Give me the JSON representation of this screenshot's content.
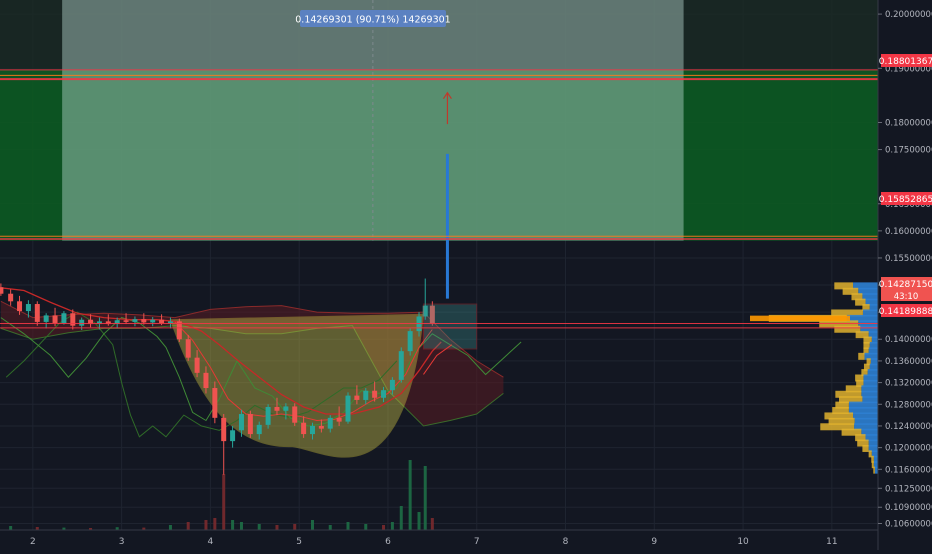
{
  "chart_data": {
    "type": "candlestick",
    "title": "",
    "xlabel": "",
    "ylabel": "",
    "x_ticks": [
      "2",
      "3",
      "4",
      "5",
      "6",
      "7",
      "8",
      "9",
      "10",
      "11"
    ],
    "x_tick_values": [
      2,
      3,
      4,
      5,
      6,
      7,
      8,
      9,
      10,
      11
    ],
    "xlim": [
      1.63,
      11.52
    ],
    "y_ticks": [
      "0.20000000",
      "0.19000000",
      "0.18000000",
      "0.17500000",
      "0.16500000",
      "0.16000000",
      "0.15500000",
      "0.15000000",
      "0.14500000",
      "0.14000000",
      "0.13600000",
      "0.13200000",
      "0.12800000",
      "0.12400000",
      "0.12000000",
      "0.11600000",
      "0.11250000",
      "0.10900000",
      "0.10600000"
    ],
    "ylim": [
      0.1048,
      0.2026
    ],
    "price_labels": {
      "target": "0.18801367",
      "entry": "0.15852865",
      "current": "0.14287150",
      "countdown": "43:10",
      "low": "0.14189888"
    },
    "measure_label": "0.14269301 (90.71%) 14269301",
    "patterns": {
      "cup_top": 0.1446,
      "cup_bottom": 0.1202,
      "cup_x": [
        3.55,
        6.4
      ],
      "projection_box": {
        "x": [
          6.4,
          7.0
        ],
        "y": [
          0.1382,
          0.1465
        ]
      },
      "target_zone": {
        "x": [
          2.33,
          9.33
        ],
        "y": [
          0.1582,
          0.203
        ]
      },
      "arrow": {
        "x": 6.67,
        "y": [
          0.1475,
          0.1742
        ]
      },
      "arrow_head": {
        "x": 6.67,
        "y": [
          0.1797,
          0.1855
        ]
      }
    },
    "candles": [
      {
        "x": 1.64,
        "o": 0.1496,
        "h": 0.1503,
        "l": 0.148,
        "c": 0.1484
      },
      {
        "x": 1.75,
        "o": 0.1484,
        "h": 0.1492,
        "l": 0.1462,
        "c": 0.147
      },
      {
        "x": 1.85,
        "o": 0.147,
        "h": 0.148,
        "l": 0.1445,
        "c": 0.1452
      },
      {
        "x": 1.95,
        "o": 0.1452,
        "h": 0.1472,
        "l": 0.144,
        "c": 0.1465
      },
      {
        "x": 2.05,
        "o": 0.1465,
        "h": 0.147,
        "l": 0.1425,
        "c": 0.1432
      },
      {
        "x": 2.15,
        "o": 0.1432,
        "h": 0.1448,
        "l": 0.142,
        "c": 0.1444
      },
      {
        "x": 2.25,
        "o": 0.1444,
        "h": 0.1458,
        "l": 0.1424,
        "c": 0.143
      },
      {
        "x": 2.35,
        "o": 0.143,
        "h": 0.1452,
        "l": 0.1427,
        "c": 0.1448
      },
      {
        "x": 2.45,
        "o": 0.1448,
        "h": 0.1455,
        "l": 0.1418,
        "c": 0.1425
      },
      {
        "x": 2.55,
        "o": 0.1425,
        "h": 0.144,
        "l": 0.1417,
        "c": 0.1436
      },
      {
        "x": 2.65,
        "o": 0.1436,
        "h": 0.1446,
        "l": 0.1422,
        "c": 0.1428
      },
      {
        "x": 2.75,
        "o": 0.1428,
        "h": 0.144,
        "l": 0.1418,
        "c": 0.1433
      },
      {
        "x": 2.85,
        "o": 0.1433,
        "h": 0.1446,
        "l": 0.1425,
        "c": 0.1428
      },
      {
        "x": 2.95,
        "o": 0.1428,
        "h": 0.144,
        "l": 0.142,
        "c": 0.1435
      },
      {
        "x": 3.05,
        "o": 0.1435,
        "h": 0.1448,
        "l": 0.1428,
        "c": 0.1432
      },
      {
        "x": 3.15,
        "o": 0.1432,
        "h": 0.1442,
        "l": 0.1424,
        "c": 0.1437
      },
      {
        "x": 3.25,
        "o": 0.1437,
        "h": 0.1448,
        "l": 0.1427,
        "c": 0.1431
      },
      {
        "x": 3.35,
        "o": 0.1431,
        "h": 0.1441,
        "l": 0.1424,
        "c": 0.1436
      },
      {
        "x": 3.45,
        "o": 0.1436,
        "h": 0.1446,
        "l": 0.1426,
        "c": 0.143
      },
      {
        "x": 3.55,
        "o": 0.143,
        "h": 0.144,
        "l": 0.142,
        "c": 0.1433
      },
      {
        "x": 3.65,
        "o": 0.1433,
        "h": 0.1438,
        "l": 0.1395,
        "c": 0.14
      },
      {
        "x": 3.75,
        "o": 0.14,
        "h": 0.1408,
        "l": 0.136,
        "c": 0.1366
      },
      {
        "x": 3.85,
        "o": 0.1366,
        "h": 0.138,
        "l": 0.133,
        "c": 0.1338
      },
      {
        "x": 3.95,
        "o": 0.1338,
        "h": 0.135,
        "l": 0.13,
        "c": 0.131
      },
      {
        "x": 4.05,
        "o": 0.131,
        "h": 0.1322,
        "l": 0.1245,
        "c": 0.1255
      },
      {
        "x": 4.15,
        "o": 0.1255,
        "h": 0.1262,
        "l": 0.115,
        "c": 0.1212
      },
      {
        "x": 4.25,
        "o": 0.1212,
        "h": 0.124,
        "l": 0.12,
        "c": 0.1232
      },
      {
        "x": 4.35,
        "o": 0.1232,
        "h": 0.127,
        "l": 0.122,
        "c": 0.1262
      },
      {
        "x": 4.45,
        "o": 0.1262,
        "h": 0.1268,
        "l": 0.1218,
        "c": 0.1225
      },
      {
        "x": 4.55,
        "o": 0.1225,
        "h": 0.1248,
        "l": 0.1215,
        "c": 0.1242
      },
      {
        "x": 4.65,
        "o": 0.1242,
        "h": 0.128,
        "l": 0.1235,
        "c": 0.1275
      },
      {
        "x": 4.75,
        "o": 0.1275,
        "h": 0.1292,
        "l": 0.126,
        "c": 0.1268
      },
      {
        "x": 4.85,
        "o": 0.1268,
        "h": 0.1282,
        "l": 0.1252,
        "c": 0.1276
      },
      {
        "x": 4.95,
        "o": 0.1276,
        "h": 0.1282,
        "l": 0.124,
        "c": 0.1246
      },
      {
        "x": 5.05,
        "o": 0.1246,
        "h": 0.1258,
        "l": 0.1218,
        "c": 0.1225
      },
      {
        "x": 5.15,
        "o": 0.1225,
        "h": 0.1246,
        "l": 0.1215,
        "c": 0.124
      },
      {
        "x": 5.25,
        "o": 0.124,
        "h": 0.1252,
        "l": 0.1228,
        "c": 0.1235
      },
      {
        "x": 5.35,
        "o": 0.1235,
        "h": 0.126,
        "l": 0.1228,
        "c": 0.1255
      },
      {
        "x": 5.45,
        "o": 0.1255,
        "h": 0.1276,
        "l": 0.124,
        "c": 0.1248
      },
      {
        "x": 5.55,
        "o": 0.1248,
        "h": 0.1302,
        "l": 0.1244,
        "c": 0.1296
      },
      {
        "x": 5.65,
        "o": 0.1296,
        "h": 0.1315,
        "l": 0.128,
        "c": 0.1288
      },
      {
        "x": 5.75,
        "o": 0.1288,
        "h": 0.131,
        "l": 0.128,
        "c": 0.1305
      },
      {
        "x": 5.85,
        "o": 0.1305,
        "h": 0.1322,
        "l": 0.1285,
        "c": 0.1292
      },
      {
        "x": 5.95,
        "o": 0.1292,
        "h": 0.1312,
        "l": 0.1284,
        "c": 0.1306
      },
      {
        "x": 6.05,
        "o": 0.1306,
        "h": 0.133,
        "l": 0.1298,
        "c": 0.1325
      },
      {
        "x": 6.15,
        "o": 0.1325,
        "h": 0.1385,
        "l": 0.132,
        "c": 0.1378
      },
      {
        "x": 6.25,
        "o": 0.1378,
        "h": 0.142,
        "l": 0.137,
        "c": 0.1415
      },
      {
        "x": 6.35,
        "o": 0.1415,
        "h": 0.145,
        "l": 0.1405,
        "c": 0.1442
      },
      {
        "x": 6.42,
        "o": 0.1442,
        "h": 0.1512,
        "l": 0.1436,
        "c": 0.1462
      },
      {
        "x": 6.5,
        "o": 0.1462,
        "h": 0.147,
        "l": 0.1425,
        "c": 0.1429
      }
    ],
    "volume": [
      {
        "x": 1.75,
        "v": 2,
        "up": true
      },
      {
        "x": 2.05,
        "v": 1.5,
        "up": false
      },
      {
        "x": 2.35,
        "v": 1.2,
        "up": true
      },
      {
        "x": 2.65,
        "v": 1,
        "up": false
      },
      {
        "x": 2.95,
        "v": 1.4,
        "up": true
      },
      {
        "x": 3.25,
        "v": 1.2,
        "up": false
      },
      {
        "x": 3.55,
        "v": 2.5,
        "up": true
      },
      {
        "x": 3.75,
        "v": 4,
        "up": false
      },
      {
        "x": 3.95,
        "v": 5,
        "up": false
      },
      {
        "x": 4.05,
        "v": 6,
        "up": false
      },
      {
        "x": 4.15,
        "v": 28,
        "up": false
      },
      {
        "x": 4.25,
        "v": 5,
        "up": true
      },
      {
        "x": 4.35,
        "v": 4,
        "up": true
      },
      {
        "x": 4.55,
        "v": 3,
        "up": true
      },
      {
        "x": 4.75,
        "v": 2.5,
        "up": false
      },
      {
        "x": 4.95,
        "v": 3,
        "up": false
      },
      {
        "x": 5.15,
        "v": 5,
        "up": true
      },
      {
        "x": 5.35,
        "v": 2.5,
        "up": true
      },
      {
        "x": 5.55,
        "v": 4,
        "up": true
      },
      {
        "x": 5.75,
        "v": 3,
        "up": true
      },
      {
        "x": 5.95,
        "v": 2.5,
        "up": false
      },
      {
        "x": 6.05,
        "v": 4,
        "up": true
      },
      {
        "x": 6.15,
        "v": 12,
        "up": true
      },
      {
        "x": 6.25,
        "v": 35,
        "up": true
      },
      {
        "x": 6.35,
        "v": 9,
        "up": true
      },
      {
        "x": 6.42,
        "v": 32,
        "up": true
      },
      {
        "x": 6.5,
        "v": 6,
        "up": false
      }
    ],
    "ma_red": [
      [
        1.64,
        0.1495
      ],
      [
        1.9,
        0.149
      ],
      [
        2.2,
        0.1468
      ],
      [
        2.5,
        0.1448
      ],
      [
        2.8,
        0.144
      ],
      [
        3.1,
        0.1436
      ],
      [
        3.4,
        0.1436
      ],
      [
        3.65,
        0.1432
      ],
      [
        3.9,
        0.1415
      ],
      [
        4.1,
        0.139
      ],
      [
        4.3,
        0.1362
      ],
      [
        4.55,
        0.133
      ],
      [
        4.8,
        0.1298
      ],
      [
        5.05,
        0.1275
      ],
      [
        5.3,
        0.1262
      ],
      [
        5.6,
        0.1262
      ],
      [
        5.9,
        0.1275
      ],
      [
        6.15,
        0.13
      ],
      [
        6.35,
        0.1342
      ],
      [
        6.5,
        0.1378
      ],
      [
        6.6,
        0.1395
      ]
    ],
    "ma_red_fast": [
      [
        3.6,
        0.1432
      ],
      [
        3.8,
        0.1398
      ],
      [
        4.0,
        0.1348
      ],
      [
        4.2,
        0.129
      ],
      [
        4.4,
        0.1262
      ],
      [
        4.6,
        0.1258
      ],
      [
        4.8,
        0.1262
      ],
      [
        5.0,
        0.1258
      ],
      [
        5.2,
        0.125
      ],
      [
        5.4,
        0.1252
      ],
      [
        5.6,
        0.1265
      ],
      [
        5.8,
        0.1285
      ],
      [
        6.0,
        0.13
      ],
      [
        6.2,
        0.1335
      ],
      [
        6.35,
        0.1385
      ],
      [
        6.5,
        0.1418
      ]
    ],
    "lead_green": [
      [
        1.64,
        0.144
      ],
      [
        1.9,
        0.141
      ],
      [
        2.2,
        0.137
      ],
      [
        2.4,
        0.133
      ],
      [
        2.6,
        0.1365
      ],
      [
        2.8,
        0.141
      ],
      [
        3.0,
        0.144
      ],
      [
        3.2,
        0.143
      ],
      [
        3.4,
        0.1405
      ],
      [
        3.5,
        0.1385
      ],
      [
        3.65,
        0.133
      ],
      [
        3.8,
        0.1265
      ],
      [
        3.95,
        0.125
      ],
      [
        4.1,
        0.129
      ],
      [
        4.3,
        0.136
      ],
      [
        4.5,
        0.131
      ],
      [
        4.7,
        0.1295
      ],
      [
        4.9,
        0.1255
      ],
      [
        5.1,
        0.124
      ],
      [
        5.3,
        0.1245
      ],
      [
        5.5,
        0.1265
      ],
      [
        5.7,
        0.1305
      ],
      [
        5.9,
        0.13
      ],
      [
        6.1,
        0.131
      ],
      [
        6.3,
        0.1375
      ],
      [
        6.5,
        0.141
      ],
      [
        6.7,
        0.139
      ],
      [
        6.9,
        0.137
      ],
      [
        7.1,
        0.1335
      ],
      [
        7.3,
        0.1365
      ],
      [
        7.5,
        0.1395
      ]
    ],
    "lag_green": [
      [
        1.7,
        0.133
      ],
      [
        1.9,
        0.136
      ],
      [
        2.1,
        0.1395
      ],
      [
        2.3,
        0.143
      ],
      [
        2.5,
        0.145
      ],
      [
        2.7,
        0.143
      ],
      [
        2.9,
        0.139
      ],
      [
        3.0,
        0.132
      ],
      [
        3.1,
        0.126
      ],
      [
        3.2,
        0.122
      ],
      [
        3.35,
        0.124
      ],
      [
        3.5,
        0.122
      ],
      [
        3.7,
        0.126
      ],
      [
        3.9,
        0.124
      ],
      [
        4.1,
        0.1232
      ],
      [
        4.3,
        0.125
      ],
      [
        4.5,
        0.1278
      ],
      [
        4.7,
        0.1262
      ],
      [
        4.9,
        0.1256
      ],
      [
        5.1,
        0.1266
      ],
      [
        5.3,
        0.1288
      ],
      [
        5.5,
        0.131
      ],
      [
        5.7,
        0.131
      ],
      [
        5.9,
        0.1325
      ],
      [
        6.1,
        0.136
      ]
    ],
    "cloud": {
      "upper": [
        [
          1.64,
          0.147
        ],
        [
          2.0,
          0.144
        ],
        [
          2.4,
          0.1445
        ],
        [
          2.8,
          0.1448
        ],
        [
          3.2,
          0.1445
        ],
        [
          3.6,
          0.144
        ],
        [
          4.0,
          0.1455
        ],
        [
          4.4,
          0.146
        ],
        [
          4.8,
          0.1462
        ],
        [
          5.2,
          0.145
        ],
        [
          5.6,
          0.1448
        ],
        [
          6.0,
          0.1448
        ],
        [
          6.4,
          0.145
        ],
        [
          6.7,
          0.14
        ],
        [
          7.0,
          0.136
        ],
        [
          7.3,
          0.133
        ]
      ],
      "lower": [
        [
          1.64,
          0.142
        ],
        [
          2.0,
          0.14
        ],
        [
          2.4,
          0.1412
        ],
        [
          2.8,
          0.142
        ],
        [
          3.2,
          0.142
        ],
        [
          3.6,
          0.1425
        ],
        [
          4.0,
          0.142
        ],
        [
          4.4,
          0.141
        ],
        [
          4.8,
          0.141
        ],
        [
          5.2,
          0.142
        ],
        [
          5.6,
          0.1425
        ],
        [
          6.0,
          0.1305
        ],
        [
          6.4,
          0.124
        ],
        [
          6.7,
          0.125
        ],
        [
          7.0,
          0.1262
        ],
        [
          7.3,
          0.13
        ]
      ]
    },
    "volume_profile": [
      {
        "p": 0.1498,
        "up": 3.6,
        "dn": 4.8
      },
      {
        "p": 0.1488,
        "up": 3.0,
        "dn": 3.8
      },
      {
        "p": 0.1478,
        "up": 2.1,
        "dn": 3.0
      },
      {
        "p": 0.1468,
        "up": 2.0,
        "dn": 2.4
      },
      {
        "p": 0.1458,
        "up": 1.4,
        "dn": 1.6
      },
      {
        "p": 0.1448,
        "up": 6.1,
        "dn": 2.9
      },
      {
        "p": 0.1438,
        "up": 15.0,
        "dn": 6.0
      },
      {
        "p": 0.1428,
        "up": 7.5,
        "dn": 3.8
      },
      {
        "p": 0.1418,
        "up": 5.0,
        "dn": 3.4
      },
      {
        "p": 0.1408,
        "up": 2.5,
        "dn": 1.8
      },
      {
        "p": 0.1398,
        "up": 1.6,
        "dn": 1.2
      },
      {
        "p": 0.1388,
        "up": 1.2,
        "dn": 1.6
      },
      {
        "p": 0.1378,
        "up": 1.0,
        "dn": 1.8
      },
      {
        "p": 0.1368,
        "up": 1.2,
        "dn": 2.6
      },
      {
        "p": 0.1358,
        "up": 0.8,
        "dn": 1.4
      },
      {
        "p": 0.1348,
        "up": 1.1,
        "dn": 1.6
      },
      {
        "p": 0.1338,
        "up": 1.2,
        "dn": 2.0
      },
      {
        "p": 0.1328,
        "up": 1.6,
        "dn": 2.8
      },
      {
        "p": 0.1318,
        "up": 1.4,
        "dn": 2.8
      },
      {
        "p": 0.1308,
        "up": 3.0,
        "dn": 3.2
      },
      {
        "p": 0.1298,
        "up": 5.0,
        "dn": 3.2
      },
      {
        "p": 0.1288,
        "up": 4.5,
        "dn": 3.0
      },
      {
        "p": 0.1278,
        "up": 2.6,
        "dn": 5.6
      },
      {
        "p": 0.1268,
        "up": 3.2,
        "dn": 5.6
      },
      {
        "p": 0.1258,
        "up": 5.5,
        "dn": 4.8
      },
      {
        "p": 0.1248,
        "up": 5.0,
        "dn": 4.5
      },
      {
        "p": 0.1238,
        "up": 6.5,
        "dn": 4.6
      },
      {
        "p": 0.1228,
        "up": 3.8,
        "dn": 3.2
      },
      {
        "p": 0.1218,
        "up": 2.0,
        "dn": 2.4
      },
      {
        "p": 0.1208,
        "up": 2.2,
        "dn": 1.8
      },
      {
        "p": 0.1198,
        "up": 1.2,
        "dn": 1.8
      },
      {
        "p": 0.1188,
        "up": 0.6,
        "dn": 1.2
      },
      {
        "p": 0.1178,
        "up": 0.5,
        "dn": 0.8
      },
      {
        "p": 0.1168,
        "up": 0.4,
        "dn": 0.8
      },
      {
        "p": 0.1158,
        "up": 0.3,
        "dn": 0.6
      }
    ],
    "colors": {
      "background": "#131722",
      "grid": "#1f2430",
      "up": "#26a69a",
      "down": "#ef5350",
      "target_zone": "#b6d6cf",
      "green_band": "#0c5a22",
      "red_line": "#f23645",
      "orange_line": "#ff7a1a",
      "cup_fill": "#c9c148",
      "blue": "#2878d4",
      "vp_up": "#2e7fd2",
      "vp_dn": "#e0b12e",
      "poc": "#ff9800",
      "axis_text": "#b2b5be",
      "measure_label_bg": "#5b82c8"
    }
  }
}
